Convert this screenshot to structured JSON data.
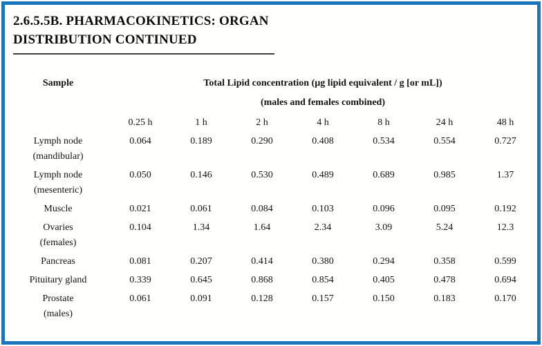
{
  "frame": {
    "border_color": "#1b75bc"
  },
  "title": {
    "line1": "2.6.5.5B. PHARMACOKINETICS: ORGAN",
    "line2": "DISTRIBUTION CONTINUED"
  },
  "table": {
    "sample_header": "Sample",
    "group_header": {
      "line1": "Total Lipid concentration (µg lipid equivalent / g [or mL])",
      "line2": "(males and females combined)"
    },
    "time_headers": [
      "0.25 h",
      "1 h",
      "2 h",
      "4 h",
      "8 h",
      "24 h",
      "48 h"
    ],
    "rows": [
      {
        "label_line1": "Lymph node",
        "label_line2": "(mandibular)",
        "values": [
          "0.064",
          "0.189",
          "0.290",
          "0.408",
          "0.534",
          "0.554",
          "0.727"
        ]
      },
      {
        "label_line1": "Lymph node",
        "label_line2": "(mesenteric)",
        "values": [
          "0.050",
          "0.146",
          "0.530",
          "0.489",
          "0.689",
          "0.985",
          "1.37"
        ]
      },
      {
        "label_line1": "Muscle",
        "label_line2": "",
        "values": [
          "0.021",
          "0.061",
          "0.084",
          "0.103",
          "0.096",
          "0.095",
          "0.192"
        ]
      },
      {
        "label_line1": "Ovaries",
        "label_line2": "(females)",
        "values": [
          "0.104",
          "1.34",
          "1.64",
          "2.34",
          "3.09",
          "5.24",
          "12.3"
        ]
      },
      {
        "label_line1": "Pancreas",
        "label_line2": "",
        "values": [
          "0.081",
          "0.207",
          "0.414",
          "0.380",
          "0.294",
          "0.358",
          "0.599"
        ]
      },
      {
        "label_line1": "Pituitary gland",
        "label_line2": "",
        "values": [
          "0.339",
          "0.645",
          "0.868",
          "0.854",
          "0.405",
          "0.478",
          "0.694"
        ]
      },
      {
        "label_line1": "Prostate",
        "label_line2": "(males)",
        "values": [
          "0.061",
          "0.091",
          "0.128",
          "0.157",
          "0.150",
          "0.183",
          "0.170"
        ]
      }
    ]
  }
}
